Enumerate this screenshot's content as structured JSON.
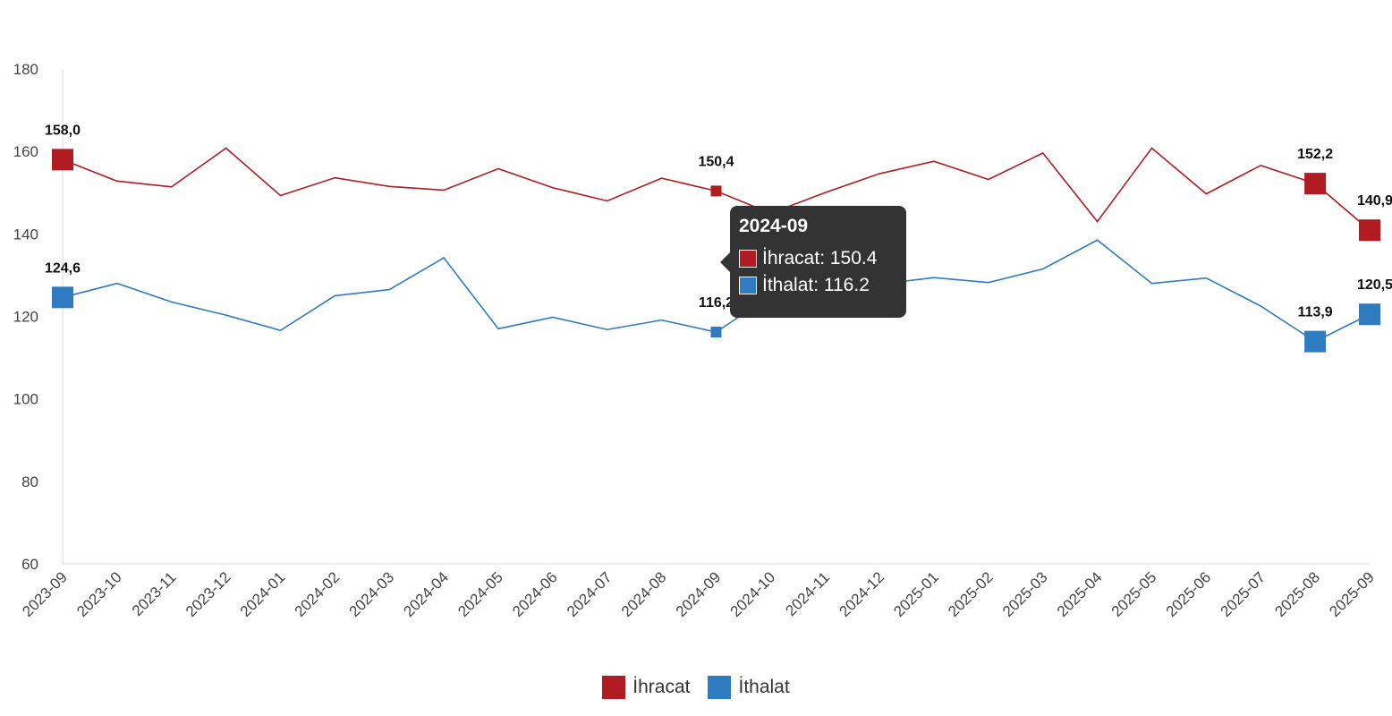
{
  "chart_data": {
    "type": "line",
    "categories": [
      "2023-09",
      "2023-10",
      "2023-11",
      "2023-12",
      "2024-01",
      "2024-02",
      "2024-03",
      "2024-04",
      "2024-05",
      "2024-06",
      "2024-07",
      "2024-08",
      "2024-09",
      "2024-10",
      "2024-11",
      "2024-12",
      "2025-01",
      "2025-02",
      "2025-03",
      "2025-04",
      "2025-05",
      "2025-06",
      "2025-07",
      "2025-08",
      "2025-09"
    ],
    "series": [
      {
        "name": "İhracat",
        "color": "#b01c22",
        "values": [
          158.0,
          152.8,
          151.4,
          160.8,
          149.3,
          153.6,
          151.5,
          150.6,
          155.8,
          151.2,
          148.0,
          153.5,
          150.4,
          145.0,
          150.0,
          154.6,
          157.6,
          153.2,
          159.6,
          143.0,
          160.8,
          149.7,
          156.6,
          152.2,
          140.9
        ]
      },
      {
        "name": "İthalat",
        "color": "#2e7bbf",
        "values": [
          124.6,
          128.0,
          123.5,
          120.3,
          116.6,
          125.0,
          126.5,
          134.2,
          117.0,
          119.8,
          116.8,
          119.1,
          116.2,
          125.0,
          126.5,
          127.8,
          129.4,
          128.2,
          131.5,
          138.5,
          128.0,
          129.3,
          122.5,
          113.9,
          120.5
        ]
      }
    ],
    "ylim": [
      60,
      180
    ],
    "yticks": [
      "60",
      "80",
      "100",
      "120",
      "140",
      "160",
      "180"
    ],
    "data_labels": [
      {
        "series": 0,
        "index": 0,
        "text": "158,0"
      },
      {
        "series": 0,
        "index": 12,
        "text": "150,4"
      },
      {
        "series": 0,
        "index": 23,
        "text": "152,2"
      },
      {
        "series": 0,
        "index": 24,
        "text": "140,9"
      },
      {
        "series": 1,
        "index": 0,
        "text": "124,6"
      },
      {
        "series": 1,
        "index": 12,
        "text": "116,2"
      },
      {
        "series": 1,
        "index": 23,
        "text": "113,9"
      },
      {
        "series": 1,
        "index": 24,
        "text": "120,5"
      }
    ],
    "large_markers": [
      0,
      23,
      24
    ],
    "highlight_index": 12,
    "grid": false,
    "legend_position": "bottom"
  },
  "legend": {
    "items": [
      {
        "label": "İhracat",
        "color": "#b01c22"
      },
      {
        "label": "İthalat",
        "color": "#2e7bbf"
      }
    ]
  },
  "tooltip": {
    "title": "2024-09",
    "rows": [
      {
        "text": "İhracat: 150.4",
        "color": "#b01c22"
      },
      {
        "text": "İthalat: 116.2",
        "color": "#2e7bbf"
      }
    ]
  }
}
